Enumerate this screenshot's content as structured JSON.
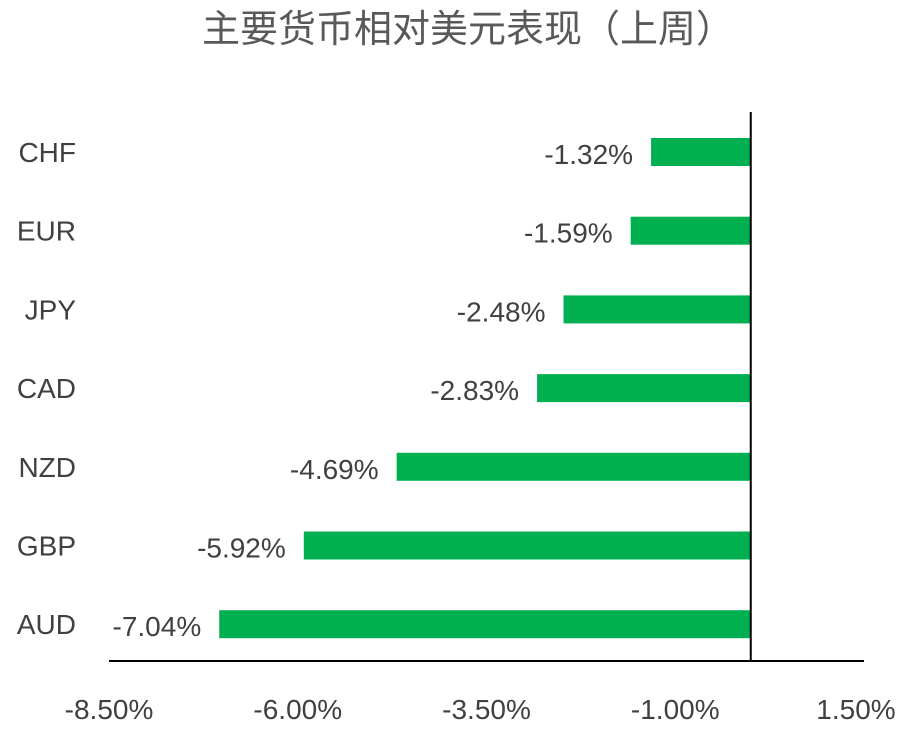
{
  "chart_data": {
    "type": "bar",
    "orientation": "horizontal",
    "title": "主要货币相对美元表现（上周）",
    "categories": [
      "CHF",
      "EUR",
      "JPY",
      "CAD",
      "NZD",
      "GBP",
      "AUD"
    ],
    "values": [
      -1.32,
      -1.59,
      -2.48,
      -2.83,
      -4.69,
      -5.92,
      -7.04
    ],
    "value_labels": [
      "-1.32%",
      "-1.59%",
      "-2.48%",
      "-2.83%",
      "-4.69%",
      "-5.92%",
      "-7.04%"
    ],
    "xlim": [
      -8.5,
      1.5
    ],
    "xticks": [
      -8.5,
      -6.0,
      -3.5,
      -1.0,
      1.5
    ],
    "xtick_labels": [
      "-8.50%",
      "-6.00%",
      "-3.50%",
      "-1.00%",
      "1.50%"
    ],
    "xlabel": "",
    "ylabel": "",
    "grid": false,
    "bar_color": "#00B050"
  }
}
